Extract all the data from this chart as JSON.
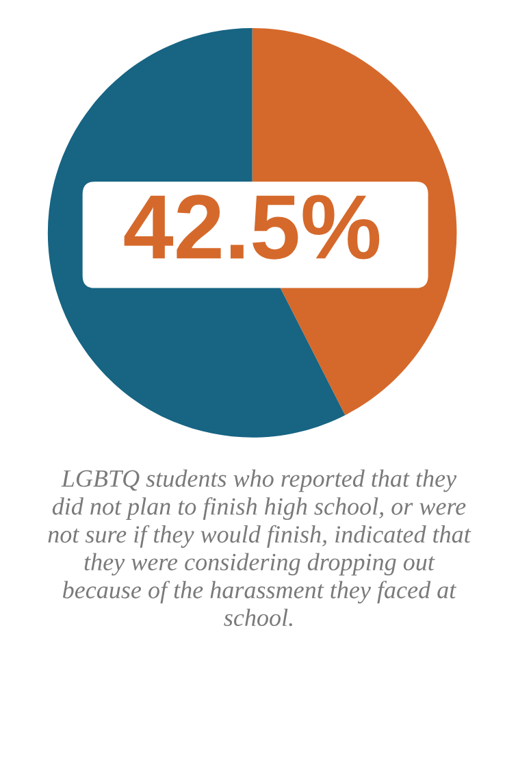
{
  "chart_data": {
    "type": "pie",
    "categories": [
      null,
      null
    ],
    "values": [
      42.5,
      57.5
    ],
    "colors": [
      "#d5692b",
      "#176483"
    ],
    "value_labels": [
      "42.5%",
      null
    ],
    "annotations": [
      "LGBTQ students who reported that they did not plan to finish high school, or were not sure if they would finish, indicated that they were considering dropping out because of the harassment they faced at school."
    ]
  }
}
